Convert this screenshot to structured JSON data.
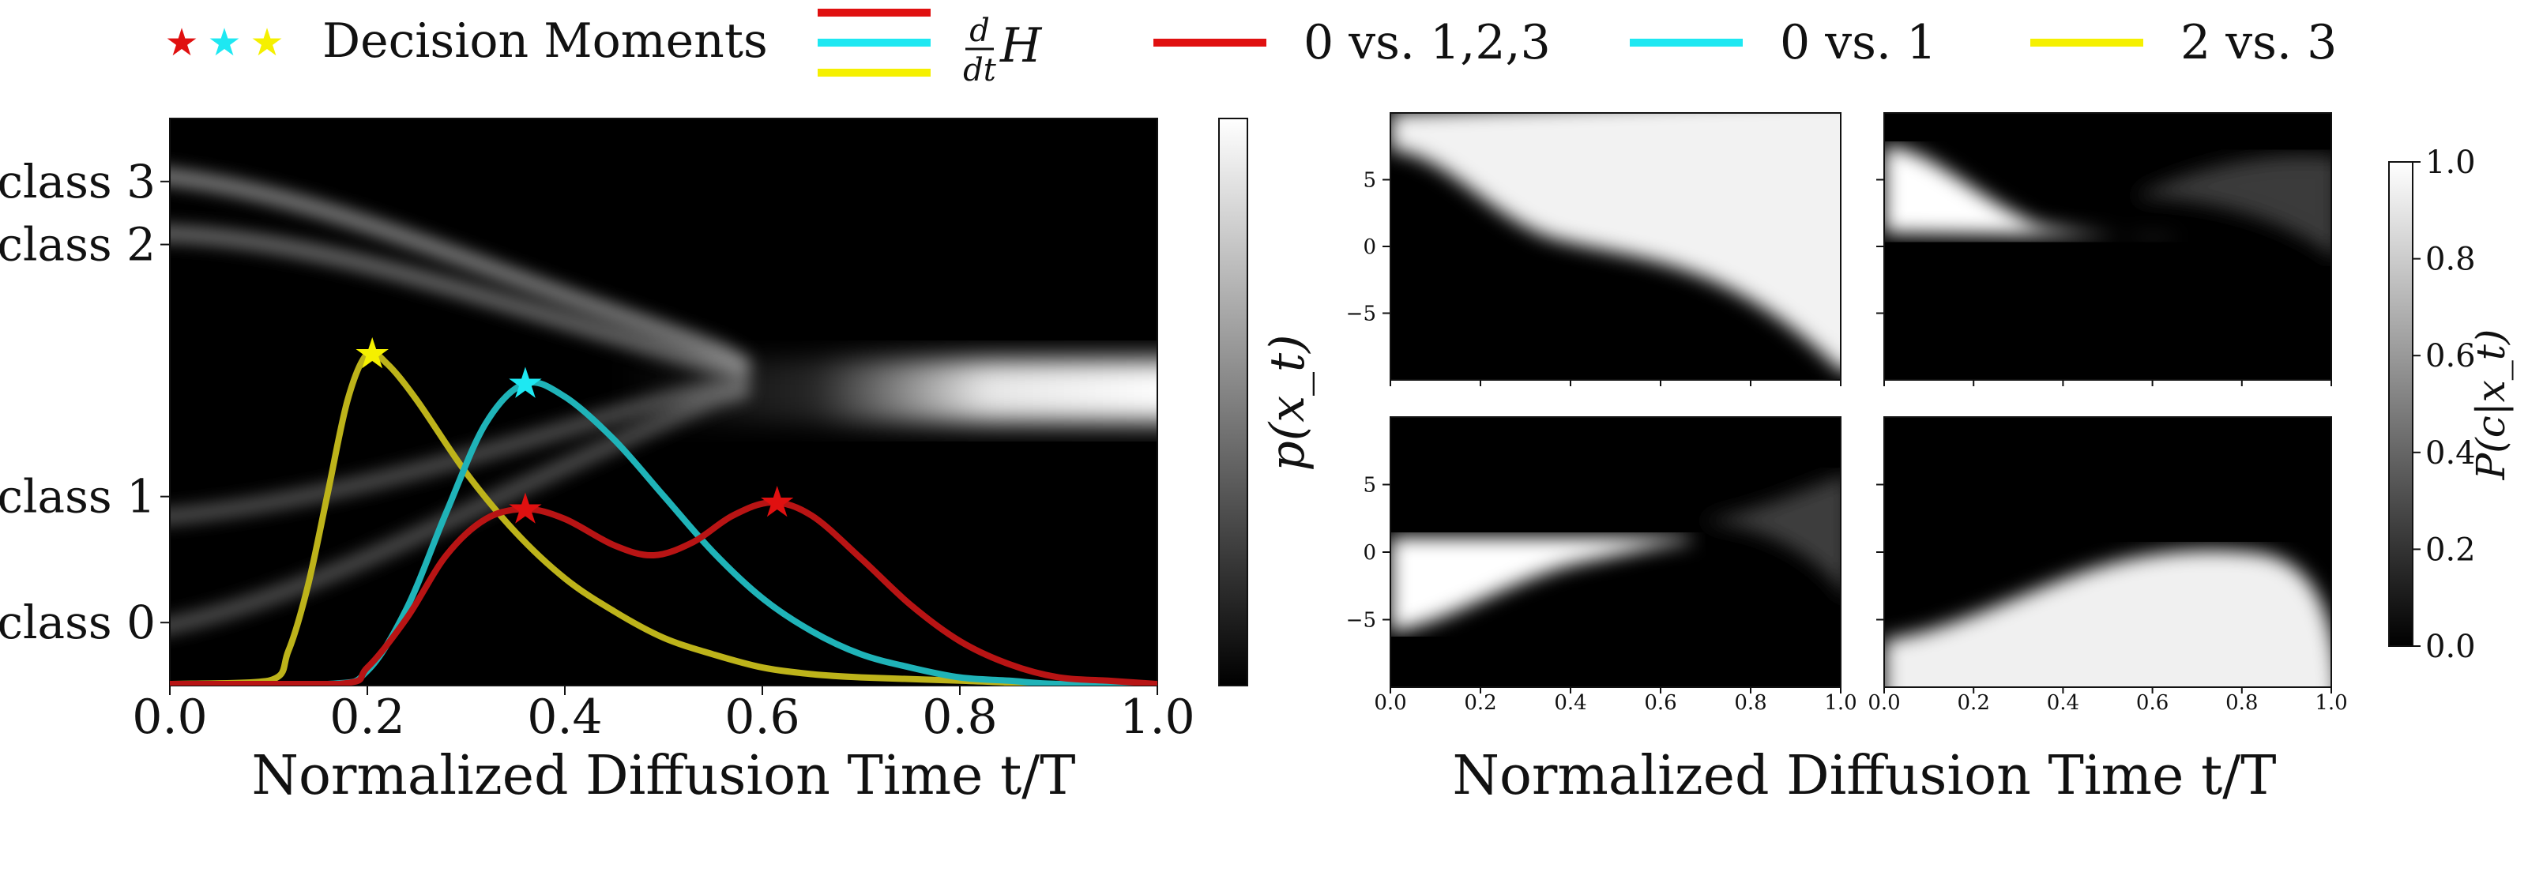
{
  "legend": {
    "decision_moments_label": "Decision Moments",
    "derivative_label_num": "d",
    "derivative_label_den": "dt",
    "derivative_label_var": "H",
    "entries": [
      {
        "label": "0 vs. 1,2,3",
        "color": "#e01010"
      },
      {
        "label": "0 vs. 1",
        "color": "#1ee8f2"
      },
      {
        "label": "2 vs. 3",
        "color": "#f5f000"
      }
    ],
    "star_colors": [
      "#e01010",
      "#1ee8f2",
      "#f5f000"
    ]
  },
  "chart_data": [
    {
      "type": "heatmap",
      "panel": "left",
      "xlabel": "Normalized Diffusion Time t/T",
      "colorbar_label": "p(x_t)",
      "colormap": "gray",
      "xlim": [
        0,
        1
      ],
      "x_ticks": [
        "0.0",
        "0.2",
        "0.4",
        "0.6",
        "0.8",
        "1.0"
      ],
      "y_classes": [
        {
          "label": "class 3",
          "level": 3.0
        },
        {
          "label": "class 2",
          "level": 2.0
        },
        {
          "label": "class 1",
          "level": -2.0
        },
        {
          "label": "class 0",
          "level": -4.0
        }
      ],
      "ylim": [
        -5,
        4
      ],
      "final_mode_level": 0.0,
      "series": [
        {
          "name": "2 vs. 3",
          "color": "#bdb31a",
          "x": [
            0,
            0.1,
            0.12,
            0.14,
            0.16,
            0.18,
            0.2,
            0.22,
            0.25,
            0.3,
            0.35,
            0.4,
            0.45,
            0.5,
            0.55,
            0.6,
            0.65,
            0.7,
            0.8,
            0.9,
            1.0
          ],
          "y": [
            0,
            0.01,
            0.1,
            0.3,
            0.58,
            0.86,
            1.0,
            0.97,
            0.86,
            0.64,
            0.46,
            0.32,
            0.22,
            0.14,
            0.09,
            0.05,
            0.03,
            0.02,
            0.01,
            0,
            0
          ],
          "peak": [
            0.205,
            1.0
          ]
        },
        {
          "name": "0 vs. 1",
          "color": "#1fb3b8",
          "x": [
            0,
            0.16,
            0.2,
            0.24,
            0.28,
            0.32,
            0.36,
            0.4,
            0.45,
            0.5,
            0.55,
            0.6,
            0.65,
            0.7,
            0.75,
            0.8,
            0.85,
            0.9,
            1.0
          ],
          "y": [
            0,
            0.0,
            0.04,
            0.23,
            0.52,
            0.79,
            0.91,
            0.87,
            0.74,
            0.57,
            0.4,
            0.26,
            0.16,
            0.09,
            0.05,
            0.02,
            0.01,
            0.0,
            0
          ],
          "peak": [
            0.36,
            0.91
          ]
        },
        {
          "name": "0 vs. 1,2,3",
          "color": "#b81414",
          "x": [
            0,
            0.17,
            0.2,
            0.24,
            0.28,
            0.32,
            0.36,
            0.4,
            0.45,
            0.49,
            0.53,
            0.57,
            0.61,
            0.65,
            0.7,
            0.75,
            0.8,
            0.85,
            0.9,
            0.95,
            1.0
          ],
          "y": [
            0,
            0.0,
            0.05,
            0.2,
            0.39,
            0.5,
            0.53,
            0.5,
            0.42,
            0.39,
            0.43,
            0.51,
            0.55,
            0.51,
            0.38,
            0.24,
            0.13,
            0.06,
            0.02,
            0.01,
            0
          ],
          "peaks": [
            [
              0.36,
              0.53
            ],
            [
              0.615,
              0.55
            ]
          ]
        }
      ]
    },
    {
      "type": "heatmap",
      "panel": "right",
      "xlabel": "Normalized Diffusion Time t/T",
      "colorbar_label": "P(c|x_t)",
      "colorbar_ticks": [
        "0.0",
        "0.2",
        "0.4",
        "0.6",
        "0.8",
        "1.0"
      ],
      "colormap": "gray",
      "xlim": [
        0,
        1
      ],
      "x_ticks": [
        "0.0",
        "0.2",
        "0.4",
        "0.6",
        "0.8",
        "1.0"
      ],
      "y_ticks": [
        "5",
        "0",
        "−5"
      ],
      "ylim": [
        -10,
        10
      ],
      "subplots": [
        {
          "position": "top-left",
          "class": 3
        },
        {
          "position": "top-right",
          "class": 2
        },
        {
          "position": "bottom-left",
          "class": 1
        },
        {
          "position": "bottom-right",
          "class": 0
        }
      ]
    }
  ]
}
